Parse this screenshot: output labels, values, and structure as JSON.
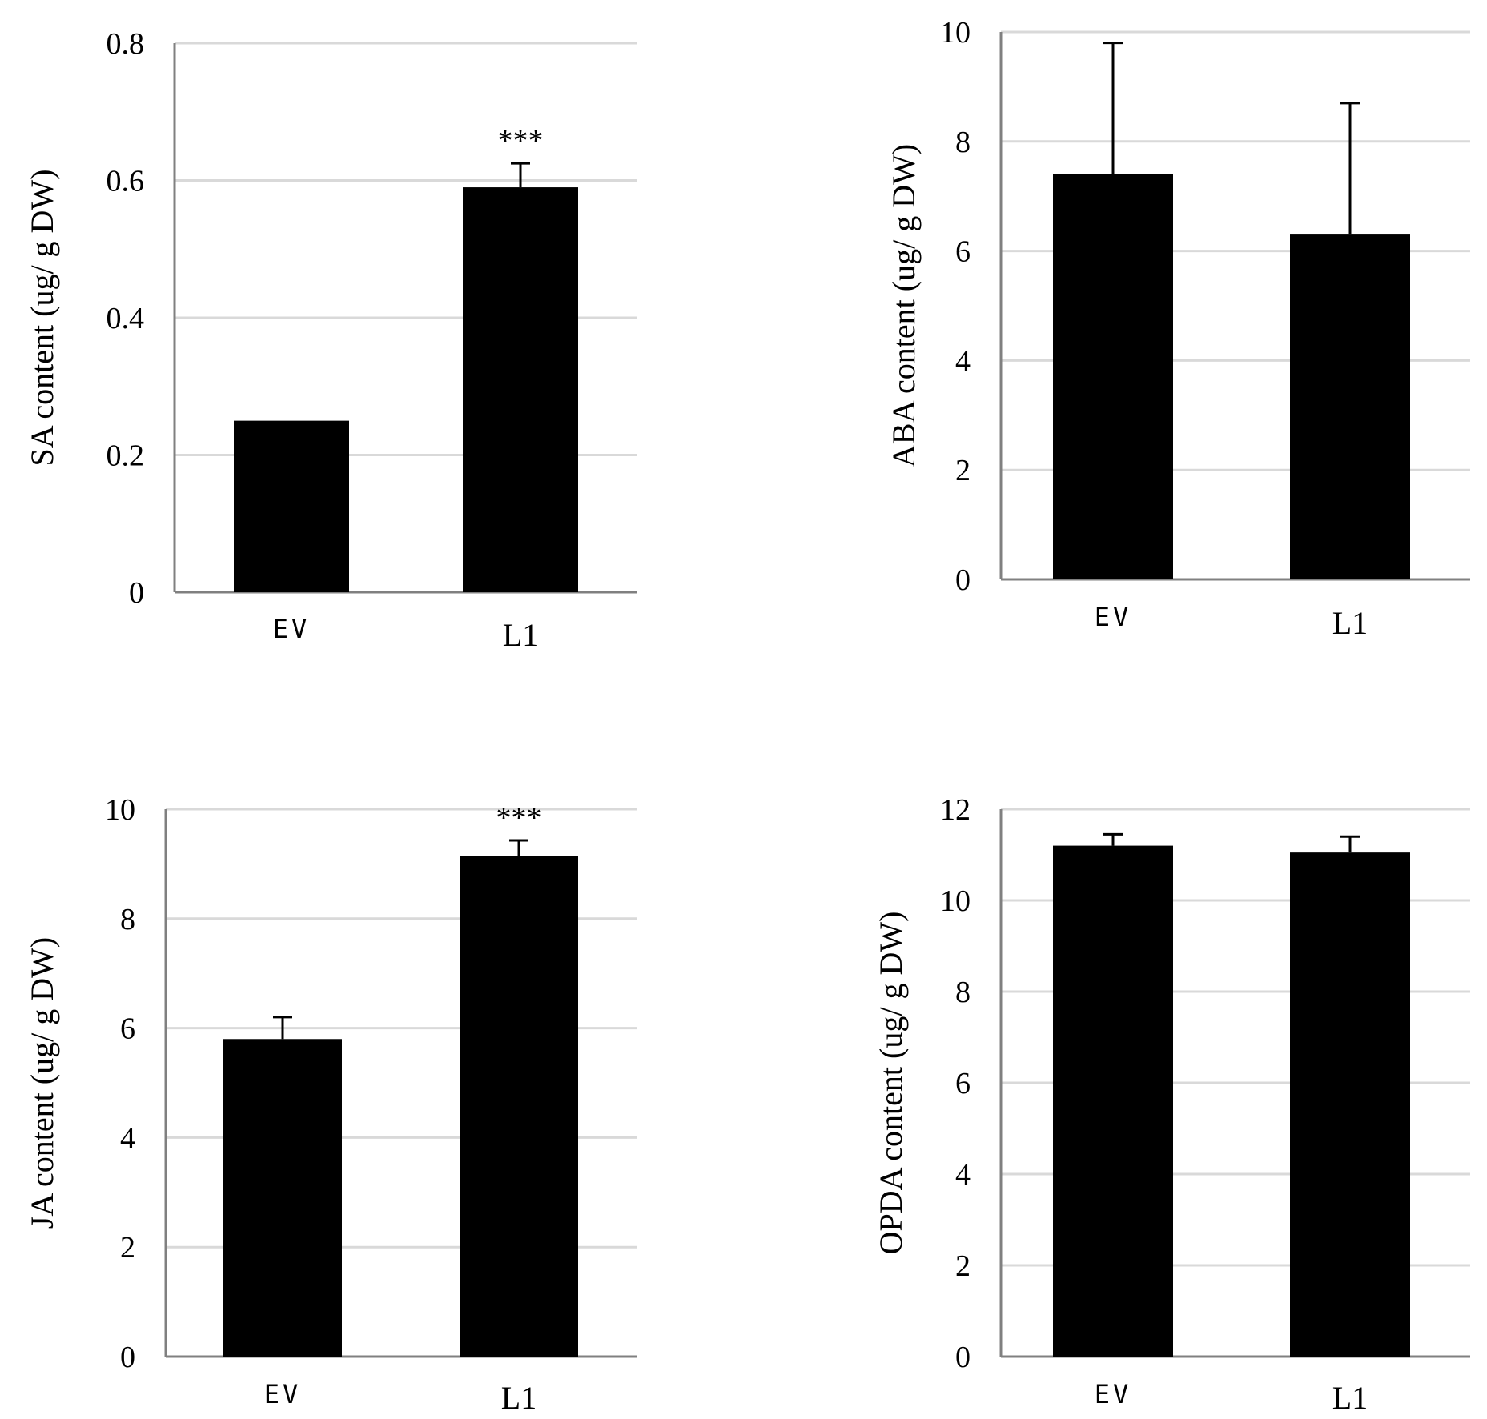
{
  "chart_data": [
    {
      "type": "bar",
      "ylabel": "SA content (ug/ g DW)",
      "categories": [
        "EV",
        "L1"
      ],
      "values": [
        0.25,
        0.59
      ],
      "errors": [
        0,
        0.035
      ],
      "significance": [
        "",
        "***"
      ],
      "ylim": [
        0,
        0.8
      ],
      "ticks": [
        0,
        0.2,
        0.4,
        0.6,
        0.8
      ],
      "tick_labels": [
        "0",
        "0.2",
        "0.4",
        "0.6",
        "0.8"
      ],
      "grid": true,
      "bar_color": "#000000",
      "grid_color": "#d9d9d9"
    },
    {
      "type": "bar",
      "ylabel": "ABA content (ug/ g DW)",
      "categories": [
        "EV",
        "L1"
      ],
      "values": [
        7.4,
        6.3
      ],
      "errors": [
        2.4,
        2.4
      ],
      "significance": [
        "",
        ""
      ],
      "ylim": [
        0,
        10
      ],
      "ticks": [
        0,
        2,
        4,
        6,
        8,
        10
      ],
      "tick_labels": [
        "0",
        "2",
        "4",
        "6",
        "8",
        "10"
      ],
      "grid": true,
      "bar_color": "#000000",
      "grid_color": "#d9d9d9"
    },
    {
      "type": "bar",
      "ylabel": "JA content (ug/ g DW)",
      "categories": [
        "EV",
        "L1"
      ],
      "values": [
        5.8,
        9.15
      ],
      "errors": [
        0.4,
        0.28
      ],
      "significance": [
        "",
        "***"
      ],
      "ylim": [
        0,
        10
      ],
      "ticks": [
        0,
        2,
        4,
        6,
        8,
        10
      ],
      "tick_labels": [
        "0",
        "2",
        "4",
        "6",
        "8",
        "10"
      ],
      "grid": true,
      "bar_color": "#000000",
      "grid_color": "#d9d9d9"
    },
    {
      "type": "bar",
      "ylabel": "OPDA content (ug/ g DW)",
      "categories": [
        "EV",
        "L1"
      ],
      "values": [
        11.2,
        11.05
      ],
      "errors": [
        0.25,
        0.35
      ],
      "significance": [
        "",
        ""
      ],
      "ylim": [
        0,
        12
      ],
      "ticks": [
        0,
        2,
        4,
        6,
        8,
        10,
        12
      ],
      "tick_labels": [
        "0",
        "2",
        "4",
        "6",
        "8",
        "10",
        "12"
      ],
      "grid": true,
      "bar_color": "#000000",
      "grid_color": "#d9d9d9"
    }
  ]
}
